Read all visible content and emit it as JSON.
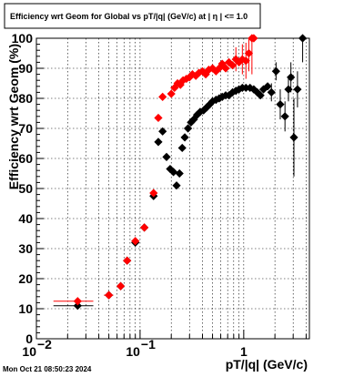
{
  "title": "Efficiency wrt Geom for Global vs pT/|q| (GeV/c) at |  η | <= 1.0",
  "timestamp": "Mon Oct 21 08:50:23 2024",
  "chart_data": {
    "type": "scatter",
    "xlabel": "pT/|q| (GeV/c)",
    "ylabel": "Efficiency wrt Geom (%)",
    "xscale": "log",
    "xlim": [
      0.01,
      4.3
    ],
    "ylim": [
      0,
      100
    ],
    "grid": true,
    "x_tick_values": [
      0.01,
      0.1,
      1
    ],
    "x_tick_labels": [
      "10",
      "10",
      "1"
    ],
    "x_tick_exponents": [
      "−2",
      "−1",
      ""
    ],
    "y_ticks": [
      0,
      10,
      20,
      30,
      40,
      50,
      60,
      70,
      80,
      90,
      100
    ],
    "series": [
      {
        "color": "#000000",
        "marker": "diamond",
        "points": [
          [
            0.025,
            11
          ],
          [
            0.05,
            14.5
          ],
          [
            0.065,
            17.5
          ],
          [
            0.075,
            26
          ],
          [
            0.09,
            32
          ],
          [
            0.11,
            37
          ],
          [
            0.135,
            47.5
          ],
          [
            0.15,
            65.5
          ],
          [
            0.165,
            69
          ],
          [
            0.18,
            60.5
          ],
          [
            0.195,
            56.5
          ],
          [
            0.21,
            55.5
          ],
          [
            0.225,
            51
          ],
          [
            0.24,
            55
          ],
          [
            0.255,
            63.5
          ],
          [
            0.27,
            67
          ],
          [
            0.29,
            70
          ],
          [
            0.31,
            72
          ],
          [
            0.33,
            73
          ],
          [
            0.355,
            74.5
          ],
          [
            0.38,
            75.5
          ],
          [
            0.41,
            76
          ],
          [
            0.44,
            77
          ],
          [
            0.47,
            78
          ],
          [
            0.5,
            79
          ],
          [
            0.54,
            79.5
          ],
          [
            0.58,
            80
          ],
          [
            0.62,
            80.5
          ],
          [
            0.67,
            81
          ],
          [
            0.72,
            81
          ],
          [
            0.78,
            82
          ],
          [
            0.84,
            82.5
          ],
          [
            0.9,
            83
          ],
          [
            0.97,
            83.5
          ],
          [
            1.05,
            83.5
          ],
          [
            1.15,
            83.5
          ],
          [
            1.25,
            83
          ],
          [
            1.35,
            82
          ],
          [
            1.45,
            81
          ],
          [
            1.55,
            83
          ],
          [
            1.7,
            84
          ],
          [
            1.85,
            82
          ],
          [
            2.05,
            89
          ],
          [
            2.25,
            78
          ],
          [
            2.5,
            74
          ],
          [
            2.7,
            83
          ],
          [
            2.85,
            87
          ],
          [
            3.05,
            67
          ],
          [
            3.3,
            83
          ],
          [
            3.7,
            100
          ]
        ],
        "errors": [
          [
            0.025,
            11,
            1,
            0.0146,
            0.0354
          ],
          [
            0.05,
            14.5,
            1,
            0.045,
            0.055
          ],
          [
            1.85,
            82,
            3,
            1.8,
            1.9
          ],
          [
            2.05,
            89,
            3,
            2,
            2.1
          ],
          [
            2.25,
            78,
            5,
            2.2,
            2.3
          ],
          [
            2.5,
            74,
            5,
            2.4,
            2.6
          ],
          [
            2.7,
            83,
            4,
            2.6,
            2.8
          ],
          [
            2.85,
            87,
            5,
            2.8,
            2.9
          ],
          [
            3.05,
            67,
            13,
            3,
            3.1
          ],
          [
            3.3,
            83,
            6,
            3.2,
            3.4
          ],
          [
            3.7,
            100,
            8,
            3.5,
            3.9
          ]
        ]
      },
      {
        "color": "#ff0000",
        "marker": "diamond",
        "points": [
          [
            0.025,
            12.5
          ],
          [
            0.05,
            14.5
          ],
          [
            0.065,
            17.5
          ],
          [
            0.075,
            26
          ],
          [
            0.09,
            32.5
          ],
          [
            0.11,
            37
          ],
          [
            0.135,
            48.5
          ],
          [
            0.15,
            73.5
          ],
          [
            0.165,
            80.5
          ],
          [
            0.2,
            81.5
          ],
          [
            0.215,
            83.5
          ],
          [
            0.23,
            85
          ],
          [
            0.245,
            84.5
          ],
          [
            0.26,
            86
          ],
          [
            0.28,
            86.5
          ],
          [
            0.3,
            87
          ],
          [
            0.32,
            88
          ],
          [
            0.345,
            87.5
          ],
          [
            0.37,
            88.5
          ],
          [
            0.4,
            89
          ],
          [
            0.43,
            88
          ],
          [
            0.46,
            89.5
          ],
          [
            0.5,
            90
          ],
          [
            0.54,
            89
          ],
          [
            0.58,
            90
          ],
          [
            0.62,
            91.5
          ],
          [
            0.67,
            90
          ],
          [
            0.72,
            92
          ],
          [
            0.78,
            91
          ],
          [
            0.84,
            93
          ],
          [
            0.9,
            92
          ],
          [
            0.97,
            93
          ],
          [
            1.05,
            92.5
          ],
          [
            1.12,
            95
          ],
          [
            1.2,
            100
          ],
          [
            1.25,
            100
          ]
        ],
        "errors": [
          [
            0.025,
            12.5,
            1,
            0.0146,
            0.0354
          ],
          [
            0.05,
            14.5,
            1,
            0.045,
            0.055
          ],
          [
            0.84,
            93,
            4,
            0.81,
            0.87
          ],
          [
            0.97,
            93,
            5,
            0.94,
            1
          ],
          [
            1.05,
            92.5,
            6,
            1.02,
            1.08
          ],
          [
            1.12,
            95,
            6,
            1.09,
            1.15
          ],
          [
            1.2,
            100,
            12,
            1.17,
            1.23
          ]
        ]
      }
    ]
  }
}
